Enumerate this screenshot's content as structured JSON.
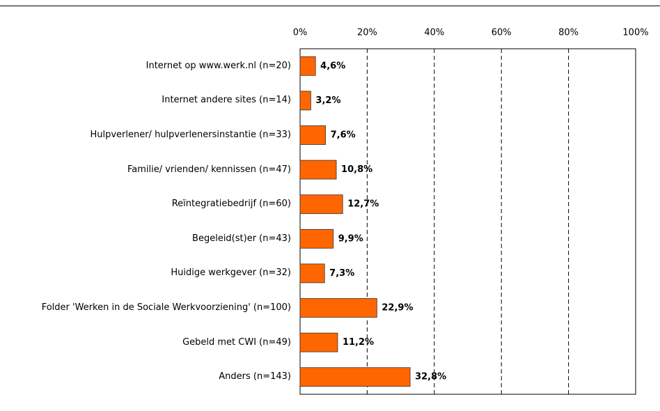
{
  "chart_data": {
    "type": "bar",
    "orientation": "horizontal",
    "categories": [
      "Internet op www.werk.nl (n=20)",
      "Internet andere sites (n=14)",
      "Hulpverlener/ hulpverlenersinstantie (n=33)",
      "Familie/ vrienden/ kennissen (n=47)",
      "Reïntegratiebedrijf (n=60)",
      "Begeleid(st)er (n=43)",
      "Huidige werkgever (n=32)",
      "Folder 'Werken in de Sociale Werkvoorziening' (n=100)",
      "Gebeld met CWI (n=49)",
      "Anders (n=143)"
    ],
    "values": [
      4.6,
      3.2,
      7.6,
      10.8,
      12.7,
      9.9,
      7.3,
      22.9,
      11.2,
      32.8
    ],
    "value_labels": [
      "4,6%",
      "3,2%",
      "7,6%",
      "10,8%",
      "12,7%",
      "9,9%",
      "7,3%",
      "22,9%",
      "11,2%",
      "32,8%"
    ],
    "color": "#ff6600",
    "xlim": [
      0,
      100
    ],
    "xticks": [
      {
        "value": 0,
        "label": "0%"
      },
      {
        "value": 20,
        "label": "20%"
      },
      {
        "value": 40,
        "label": "40%"
      },
      {
        "value": 60,
        "label": "60%"
      },
      {
        "value": 80,
        "label": "80%"
      },
      {
        "value": 100,
        "label": "100%"
      }
    ],
    "grid": true
  }
}
